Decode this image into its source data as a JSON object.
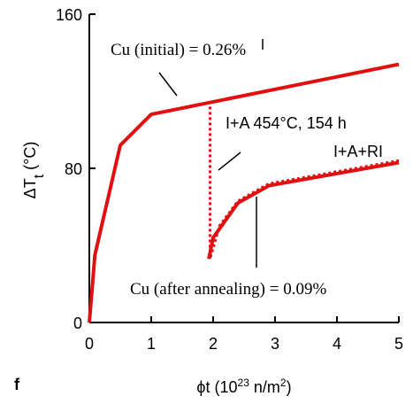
{
  "chart_data": {
    "type": "line",
    "xlabel": [
      "ϕt (10",
      "23",
      " n/m",
      "2",
      ")"
    ],
    "ylabel": [
      "ΔT",
      "t",
      " (°C)"
    ],
    "xlim": [
      0,
      5
    ],
    "xticks": [
      0,
      1,
      2,
      3,
      4,
      5
    ],
    "ylim": [
      0,
      160
    ],
    "yticks": [
      0,
      80,
      160
    ],
    "grid": false,
    "series": [
      {
        "color": "#e01010",
        "dotted": false,
        "x": [
          0,
          0.09,
          0.5,
          1.0,
          5
        ],
        "values": [
          0,
          35,
          92,
          108,
          134
        ]
      },
      {
        "color": "#e01010",
        "dotted": false,
        "x": [
          1.93,
          2.0,
          2.4,
          2.9,
          5
        ],
        "values": [
          33,
          44,
          62,
          71,
          83
        ]
      },
      {
        "color": "#e01010",
        "dotted": true,
        "x": [
          1.95,
          1.95,
          2.1,
          2.4,
          2.9,
          5
        ],
        "values": [
          112,
          33,
          50,
          63,
          72,
          84
        ]
      }
    ],
    "annotations": [
      "Cu (initial) = 0.26%",
      "I+A 454°C, 154 h",
      "I+A+RI",
      "Cu (after annealing) = 0.09%",
      "f"
    ]
  }
}
